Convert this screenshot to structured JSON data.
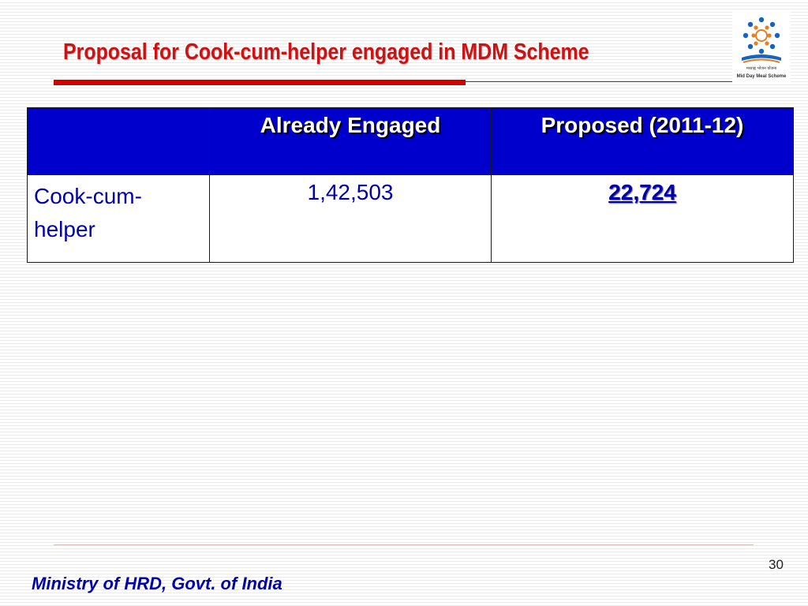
{
  "slide": {
    "title": "Proposal for Cook-cum-helper engaged in MDM Scheme",
    "page_number": "30",
    "footer": "Ministry of HRD, Govt. of India"
  },
  "logo": {
    "icon": "mid-day-meal-scheme-logo",
    "caption_hindi": "मध्याह्न भोजन योजना",
    "caption_english": "Mid Day Meal Scheme"
  },
  "table": {
    "headers": [
      "",
      "Already Engaged",
      "Proposed (2011-12)"
    ],
    "rows": [
      {
        "label": "Cook-cum-helper",
        "already_engaged": "1,42,503",
        "proposed": "22,724"
      }
    ]
  },
  "colors": {
    "title": "#cc1212",
    "rule": "#d40000",
    "header_bg": "#0000cc",
    "body_text": "#0000aa"
  }
}
